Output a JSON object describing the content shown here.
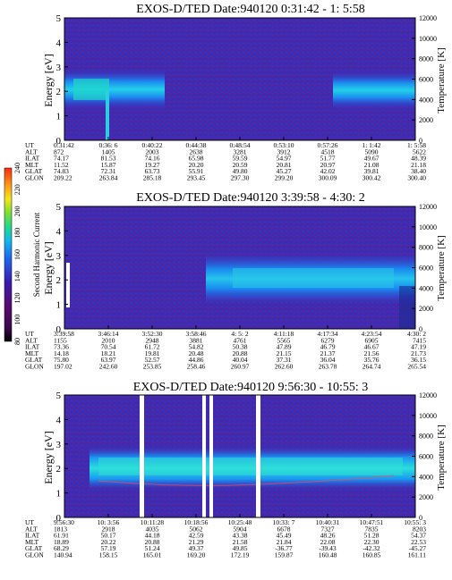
{
  "chart_data": [
    {
      "type": "heatmap",
      "title": "EXOS-D/TED   Date:940120   0:31:42 - 1: 5:58",
      "ylabel": "Energy [eV]",
      "ylabel2": "Temperature [K]",
      "ylim": [
        0,
        5
      ],
      "ylim2": [
        0,
        12000
      ],
      "yticks": [
        "0",
        "1",
        "2",
        "3",
        "4",
        "5"
      ],
      "yticks2": [
        "0",
        "2000",
        "4000",
        "6000",
        "8000",
        "10000",
        "12000"
      ],
      "orbit_rows": [
        {
          "label": "UT",
          "values": [
            "0:31:42",
            "0:36: 6",
            "0:40:22",
            "0:44:38",
            "0:48:54",
            "0:53:10",
            "0:57:26",
            "1: 1:42",
            "1: 5:58"
          ]
        },
        {
          "label": "ALT",
          "values": [
            "872",
            "1405",
            "2003",
            "2638",
            "3281",
            "3912",
            "4518",
            "5090",
            "5622"
          ]
        },
        {
          "label": "ILAT",
          "values": [
            "74.17",
            "81.53",
            "74.16",
            "65.98",
            "59.59",
            "54.97",
            "51.77",
            "49.67",
            "48.39"
          ]
        },
        {
          "label": "MLT",
          "values": [
            "11.52",
            "15.87",
            "19.27",
            "20.20",
            "20.59",
            "20.81",
            "20.97",
            "21.08",
            "21.18"
          ]
        },
        {
          "label": "GLAT",
          "values": [
            "74.83",
            "72.31",
            "63.73",
            "55.91",
            "49.80",
            "45.27",
            "42.02",
            "39.81",
            "38.40"
          ]
        },
        {
          "label": "GLON",
          "values": [
            "209.22",
            "263.84",
            "285.18",
            "293.45",
            "297.30",
            "299.20",
            "300.09",
            "300.42",
            "300.40"
          ]
        }
      ]
    },
    {
      "type": "heatmap",
      "title": "EXOS-D/TED   Date:940120   3:39:58 - 4:30: 2",
      "ylabel": "Energy [eV]",
      "ylabel2": "Temperature [K]",
      "ylim": [
        0,
        5
      ],
      "ylim2": [
        0,
        12000
      ],
      "yticks": [
        "0",
        "1",
        "2",
        "3",
        "4",
        "5"
      ],
      "yticks2": [
        "0",
        "2000",
        "4000",
        "6000",
        "8000",
        "10000",
        "12000"
      ],
      "orbit_rows": [
        {
          "label": "UT",
          "values": [
            "3:39:58",
            "3:46:14",
            "3:52:30",
            "3:58:46",
            "4: 5: 2",
            "4:11:18",
            "4:17:34",
            "4:23:54",
            "4:30: 2"
          ]
        },
        {
          "label": "ALT",
          "values": [
            "1155",
            "2010",
            "2948",
            "3881",
            "4761",
            "5565",
            "6279",
            "6905",
            "7415"
          ]
        },
        {
          "label": "ILAT",
          "values": [
            "73.36",
            "70.54",
            "61.72",
            "54.82",
            "50.38",
            "47.89",
            "46.79",
            "46.67",
            "47.19"
          ]
        },
        {
          "label": "MLT",
          "values": [
            "14.18",
            "18.21",
            "19.81",
            "20.48",
            "20.88",
            "21.15",
            "21.37",
            "21.56",
            "21.73"
          ]
        },
        {
          "label": "GLAT",
          "values": [
            "75.80",
            "63.97",
            "52.57",
            "44.86",
            "40.04",
            "37.31",
            "36.04",
            "35.76",
            "36.15"
          ]
        },
        {
          "label": "GLON",
          "values": [
            "197.02",
            "242.60",
            "253.85",
            "258.46",
            "260.97",
            "262.60",
            "263.78",
            "264.74",
            "265.54"
          ]
        }
      ]
    },
    {
      "type": "heatmap",
      "title": "EXOS-D/TED   Date:940120   9:56:30 - 10:55: 3",
      "ylabel": "Energy [eV]",
      "ylabel2": "Temperature [K]",
      "ylim": [
        0,
        5
      ],
      "ylim2": [
        0,
        12000
      ],
      "yticks": [
        "0",
        "1",
        "2",
        "3",
        "4",
        "5"
      ],
      "yticks2": [
        "0",
        "2000",
        "4000",
        "6000",
        "8000",
        "10000",
        "12000"
      ],
      "orbit_rows": [
        {
          "label": "UT",
          "values": [
            "9:56:30",
            "10: 3:56",
            "10:11:28",
            "10:18:56",
            "10:25:48",
            "10:33: 7",
            "10:40:31",
            "10:47:51",
            "10:55: 3"
          ]
        },
        {
          "label": "ALT",
          "values": [
            "1813",
            "2918",
            "4035",
            "5062",
            "5904",
            "6678",
            "7327",
            "7835",
            "8203"
          ]
        },
        {
          "label": "ILAT",
          "values": [
            "61.91",
            "50.17",
            "44.18",
            "42.59",
            "43.38",
            "45.49",
            "48.26",
            "51.28",
            "54.37"
          ]
        },
        {
          "label": "MLT",
          "values": [
            "18.89",
            "20.22",
            "20.88",
            "21.29",
            "21.58",
            "21.84",
            "22.08",
            "22.30",
            "22.53"
          ]
        },
        {
          "label": "GLAT",
          "values": [
            "68.29",
            "57.19",
            "51.24",
            "49.37",
            "49.85",
            "-36.77",
            "-39.43",
            "-42.32",
            "-45.27"
          ]
        },
        {
          "label": "GLON",
          "values": [
            "140.94",
            "158.15",
            "165.01",
            "169.20",
            "172.19",
            "159.87",
            "160.48",
            "160.85",
            "161.11"
          ]
        }
      ]
    }
  ],
  "colorbar": {
    "label": "Second Harmonic Current",
    "ticks": [
      "80",
      "100",
      "120",
      "140",
      "160",
      "180",
      "200",
      "220",
      "240"
    ],
    "colors": [
      "#000000",
      "#5a0a6e",
      "#4a14a4",
      "#2d2ad2",
      "#1a68f0",
      "#12b8f0",
      "#22d890",
      "#7ae032",
      "#f2e61c",
      "#ff9a14",
      "#ff2a14"
    ]
  }
}
